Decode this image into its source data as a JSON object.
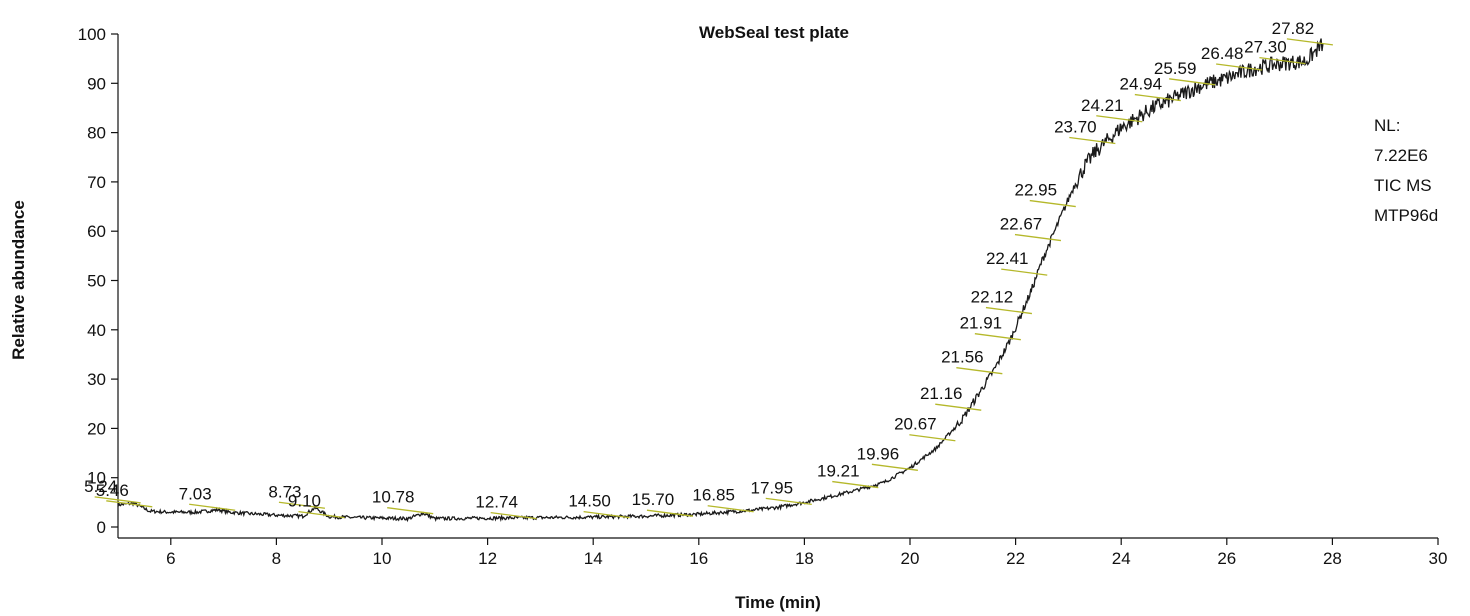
{
  "chart_data": {
    "type": "line",
    "title": "WebSeal test plate",
    "xlabel": "Time (min)",
    "ylabel": "Relative abundance",
    "xlim": [
      5,
      30
    ],
    "ylim": [
      0,
      100
    ],
    "x_ticks": [
      6,
      8,
      10,
      12,
      14,
      16,
      18,
      20,
      22,
      24,
      26,
      28,
      30
    ],
    "y_ticks": [
      0,
      10,
      20,
      30,
      40,
      50,
      60,
      70,
      80,
      90,
      100
    ],
    "info_text": [
      "NL:",
      "7.22E6",
      "TIC MS",
      "MTP96d"
    ],
    "leader_color": "#b5b82a",
    "line_color": "#1a1a1a",
    "grid": false,
    "series": [
      {
        "x": [
          5.0,
          5.3,
          5.6,
          6.0,
          6.5,
          6.9,
          7.1,
          7.5,
          8.0,
          8.5,
          8.73,
          9.0,
          9.5,
          10.0,
          10.5,
          10.78,
          11.0,
          12.0,
          13.0,
          14.0,
          15.0,
          16.0,
          16.5,
          17.0,
          17.5,
          18.0,
          18.5,
          19.0,
          19.5,
          20.0,
          20.5,
          21.0,
          21.3,
          21.6,
          21.9,
          22.1,
          22.3,
          22.5,
          22.7,
          22.9,
          23.1,
          23.3,
          23.5,
          23.7,
          24.0,
          24.3,
          24.6,
          25.0,
          25.5,
          26.0,
          26.5,
          27.0,
          27.5,
          27.82
        ],
        "y": [
          4.5,
          4.8,
          3.2,
          3.0,
          3.0,
          3.5,
          3.0,
          2.7,
          2.4,
          2.2,
          3.9,
          2.1,
          1.9,
          1.8,
          1.7,
          2.8,
          1.7,
          1.8,
          1.9,
          2.0,
          2.2,
          2.6,
          3.0,
          3.4,
          4.0,
          5.0,
          6.2,
          7.5,
          9.0,
          12.0,
          16.0,
          22.0,
          27.0,
          32.0,
          38.0,
          43.0,
          48.0,
          54.0,
          59.0,
          64.0,
          69.0,
          73.0,
          76.0,
          78.0,
          81.0,
          83.0,
          85.0,
          87.0,
          89.5,
          91.0,
          93.0,
          94.0,
          94.5,
          98.0
        ]
      }
    ],
    "peak_labels": [
      {
        "text": "5.24",
        "x": 5.24,
        "y": 5.1
      },
      {
        "text": "5.46",
        "x": 5.46,
        "y": 4.3
      },
      {
        "text": "7.03",
        "x": 7.03,
        "y": 3.6
      },
      {
        "text": "8.73",
        "x": 8.73,
        "y": 4.0
      },
      {
        "text": "9.10",
        "x": 9.1,
        "y": 2.1
      },
      {
        "text": "10.78",
        "x": 10.78,
        "y": 2.9
      },
      {
        "text": "12.74",
        "x": 12.74,
        "y": 1.9
      },
      {
        "text": "14.50",
        "x": 14.5,
        "y": 2.1
      },
      {
        "text": "15.70",
        "x": 15.7,
        "y": 2.4
      },
      {
        "text": "16.85",
        "x": 16.85,
        "y": 3.3
      },
      {
        "text": "17.95",
        "x": 17.95,
        "y": 4.8
      },
      {
        "text": "19.21",
        "x": 19.21,
        "y": 8.2
      },
      {
        "text": "19.96",
        "x": 19.96,
        "y": 11.7
      },
      {
        "text": "20.67",
        "x": 20.67,
        "y": 17.7
      },
      {
        "text": "21.16",
        "x": 21.16,
        "y": 23.9
      },
      {
        "text": "21.56",
        "x": 21.56,
        "y": 31.3
      },
      {
        "text": "21.91",
        "x": 21.91,
        "y": 38.2
      },
      {
        "text": "22.12",
        "x": 22.12,
        "y": 43.5
      },
      {
        "text": "22.41",
        "x": 22.41,
        "y": 51.3
      },
      {
        "text": "22.67",
        "x": 22.67,
        "y": 58.3
      },
      {
        "text": "22.95",
        "x": 22.95,
        "y": 65.2
      },
      {
        "text": "23.70",
        "x": 23.7,
        "y": 78.0
      },
      {
        "text": "24.21",
        "x": 24.21,
        "y": 82.4
      },
      {
        "text": "24.94",
        "x": 24.94,
        "y": 86.7
      },
      {
        "text": "25.59",
        "x": 25.59,
        "y": 89.9
      },
      {
        "text": "26.48",
        "x": 26.48,
        "y": 92.9
      },
      {
        "text": "27.30",
        "x": 27.3,
        "y": 94.2
      },
      {
        "text": "27.82",
        "x": 27.82,
        "y": 98.0
      }
    ]
  }
}
